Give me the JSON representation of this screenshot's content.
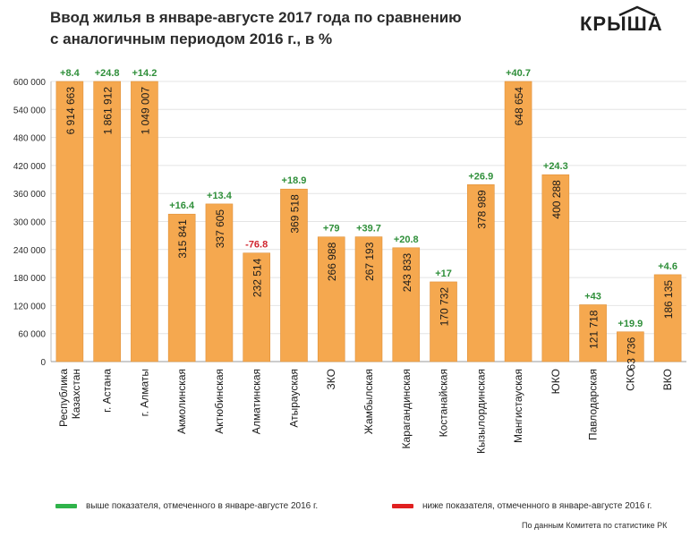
{
  "colors": {
    "bar": "#f5a84f",
    "bar_stroke": "#e0913a",
    "positive": "#2f8f3a",
    "negative": "#d0252f",
    "legend_positive": "#2fb34a",
    "legend_negative": "#e02020",
    "grid": "#e4e4e4",
    "text": "#2b2b2b"
  },
  "title_line1": "Ввод жилья в январе-августе 2017 года по сравнению",
  "title_line2": "с аналогичным периодом 2016 г., в %",
  "logo": "КРЫША",
  "legend": {
    "positive": "выше показателя, отмеченного в январе-августе 2016 г.",
    "negative": "ниже показателя, отмеченного в январе-августе 2016 г."
  },
  "source": "По данным Комитета по статистике РК",
  "chart_data": {
    "type": "bar",
    "categories": [
      "Республика Казахстан",
      "г. Астана",
      "г. Алматы",
      "Акмолинская",
      "Актюбинская",
      "Алматинская",
      "Атырауская",
      "ЗКО",
      "Жамбылская",
      "Карагандинская",
      "Костанайская",
      "Кызылординская",
      "Мангистауская",
      "ЮКО",
      "Павлодарская",
      "СКО",
      "ВКО"
    ],
    "values": [
      6914663,
      1861912,
      1049007,
      315841,
      337605,
      232514,
      369518,
      266988,
      267193,
      243833,
      170732,
      378989,
      648654,
      400288,
      121718,
      63736,
      186135
    ],
    "value_labels": [
      "6 914 663",
      "1 861 912",
      "1 049 007",
      "315 841",
      "337 605",
      "232 514",
      "369 518",
      "266 988",
      "267 193",
      "243 833",
      "170 732",
      "378 989",
      "648 654",
      "400 288",
      "121 718",
      "63 736",
      "186 135"
    ],
    "changes": [
      "+8.4",
      "+24.8",
      "+14.2",
      "+16.4",
      "+13.4",
      "-76.8",
      "+18.9",
      "+79",
      "+39.7",
      "+20.8",
      "+17",
      "+26.9",
      "+40.7",
      "+24.3",
      "+43",
      "+19.9",
      "+4.6"
    ],
    "ylim": [
      0,
      600000
    ],
    "yticks": [
      0,
      60000,
      120000,
      180000,
      240000,
      300000,
      360000,
      420000,
      480000,
      540000,
      600000
    ],
    "ytick_labels": [
      "0",
      "60 000",
      "120 000",
      "180 000",
      "240 000",
      "300 000",
      "360 000",
      "420 000",
      "480 000",
      "540 000",
      "600 000"
    ],
    "grid": true,
    "legend_position": "bottom"
  }
}
